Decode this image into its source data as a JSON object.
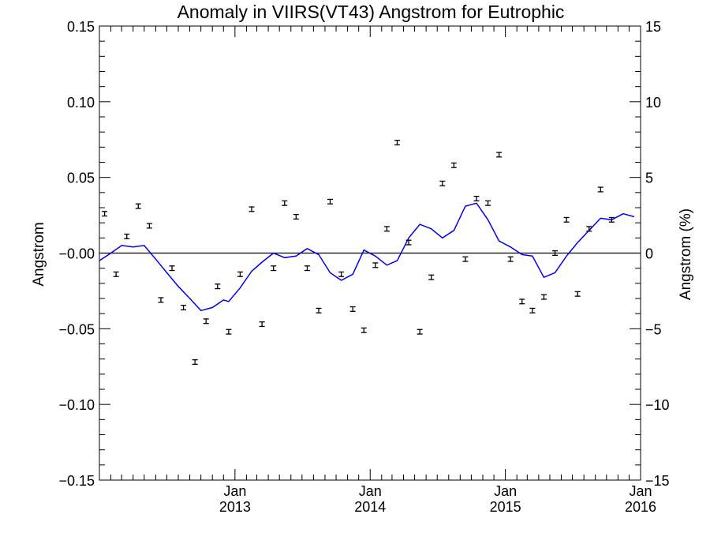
{
  "chart_data": {
    "type": "scatter",
    "title": "Anomaly in VIIRS(VT43) Angstrom for Eutrophic",
    "ylabel_left": "Angstrom",
    "ylabel_right": "Angstrom (%)",
    "ylim_left": [
      -0.15,
      0.15
    ],
    "ylim_right": [
      -15,
      15
    ],
    "yticks_left": [
      "0.15",
      "0.10",
      "0.05",
      "-0.00",
      "-0.05",
      "-0.10",
      "-0.15"
    ],
    "yticks_right": [
      "15",
      "10",
      "5",
      "0",
      "-5",
      "-10",
      "-15"
    ],
    "xlim": [
      "2012-01-01",
      "2016-01-01"
    ],
    "xticks": [
      {
        "date": "2013-01-01",
        "month": "Jan",
        "year": "2013"
      },
      {
        "date": "2014-01-01",
        "month": "Jan",
        "year": "2014"
      },
      {
        "date": "2015-01-01",
        "month": "Jan",
        "year": "2015"
      },
      {
        "date": "2016-01-01",
        "month": "Jan",
        "year": "2016"
      }
    ],
    "zero_line": true,
    "grid": false,
    "series": [
      {
        "kind": "points_with_error_bars",
        "color": "#000000",
        "error": 0.0015,
        "points": [
          {
            "x": "2012-01-15",
            "y": 0.026
          },
          {
            "x": "2012-02-15",
            "y": -0.014
          },
          {
            "x": "2012-03-15",
            "y": 0.011
          },
          {
            "x": "2012-04-15",
            "y": 0.031
          },
          {
            "x": "2012-05-15",
            "y": 0.018
          },
          {
            "x": "2012-06-15",
            "y": -0.031
          },
          {
            "x": "2012-07-15",
            "y": -0.01
          },
          {
            "x": "2012-08-15",
            "y": -0.036
          },
          {
            "x": "2012-09-15",
            "y": -0.072
          },
          {
            "x": "2012-10-15",
            "y": -0.045
          },
          {
            "x": "2012-11-15",
            "y": -0.022
          },
          {
            "x": "2012-12-15",
            "y": -0.052
          },
          {
            "x": "2013-01-15",
            "y": -0.014
          },
          {
            "x": "2013-02-15",
            "y": 0.029
          },
          {
            "x": "2013-03-15",
            "y": -0.047
          },
          {
            "x": "2013-04-15",
            "y": -0.01
          },
          {
            "x": "2013-05-15",
            "y": 0.033
          },
          {
            "x": "2013-06-15",
            "y": 0.024
          },
          {
            "x": "2013-07-15",
            "y": -0.01
          },
          {
            "x": "2013-08-15",
            "y": -0.038
          },
          {
            "x": "2013-09-15",
            "y": 0.034
          },
          {
            "x": "2013-10-15",
            "y": -0.014
          },
          {
            "x": "2013-11-15",
            "y": -0.037
          },
          {
            "x": "2013-12-15",
            "y": -0.051
          },
          {
            "x": "2014-01-15",
            "y": -0.008
          },
          {
            "x": "2014-02-15",
            "y": 0.016
          },
          {
            "x": "2014-03-15",
            "y": 0.073
          },
          {
            "x": "2014-04-15",
            "y": 0.007
          },
          {
            "x": "2014-05-15",
            "y": -0.052
          },
          {
            "x": "2014-06-15",
            "y": -0.016
          },
          {
            "x": "2014-07-15",
            "y": 0.046
          },
          {
            "x": "2014-08-15",
            "y": 0.058
          },
          {
            "x": "2014-09-15",
            "y": -0.004
          },
          {
            "x": "2014-10-15",
            "y": 0.036
          },
          {
            "x": "2014-11-15",
            "y": 0.033
          },
          {
            "x": "2014-12-15",
            "y": 0.065
          },
          {
            "x": "2015-01-15",
            "y": -0.004
          },
          {
            "x": "2015-02-15",
            "y": -0.032
          },
          {
            "x": "2015-03-15",
            "y": -0.038
          },
          {
            "x": "2015-04-15",
            "y": -0.029
          },
          {
            "x": "2015-05-15",
            "y": 0.0
          },
          {
            "x": "2015-06-15",
            "y": 0.022
          },
          {
            "x": "2015-07-15",
            "y": -0.027
          },
          {
            "x": "2015-08-15",
            "y": 0.016
          },
          {
            "x": "2015-09-15",
            "y": 0.042
          },
          {
            "x": "2015-10-15",
            "y": 0.022
          }
        ]
      },
      {
        "kind": "line",
        "color": "#0000ee",
        "points": [
          {
            "x": "2012-01-01",
            "y": -0.005
          },
          {
            "x": "2012-02-01",
            "y": 0.0
          },
          {
            "x": "2012-03-01",
            "y": 0.005
          },
          {
            "x": "2012-04-01",
            "y": 0.004
          },
          {
            "x": "2012-05-01",
            "y": 0.005
          },
          {
            "x": "2012-06-01",
            "y": -0.004
          },
          {
            "x": "2012-07-01",
            "y": -0.013
          },
          {
            "x": "2012-08-01",
            "y": -0.022
          },
          {
            "x": "2012-09-01",
            "y": -0.03
          },
          {
            "x": "2012-10-01",
            "y": -0.038
          },
          {
            "x": "2012-11-01",
            "y": -0.036
          },
          {
            "x": "2012-12-01",
            "y": -0.031
          },
          {
            "x": "2012-12-15",
            "y": -0.032
          },
          {
            "x": "2013-01-15",
            "y": -0.023
          },
          {
            "x": "2013-02-15",
            "y": -0.012
          },
          {
            "x": "2013-03-15",
            "y": -0.006
          },
          {
            "x": "2013-04-15",
            "y": 0.0
          },
          {
            "x": "2013-05-15",
            "y": -0.003
          },
          {
            "x": "2013-06-15",
            "y": -0.002
          },
          {
            "x": "2013-07-15",
            "y": 0.003
          },
          {
            "x": "2013-08-15",
            "y": -0.001
          },
          {
            "x": "2013-09-15",
            "y": -0.013
          },
          {
            "x": "2013-10-15",
            "y": -0.018
          },
          {
            "x": "2013-11-15",
            "y": -0.014
          },
          {
            "x": "2013-12-15",
            "y": 0.002
          },
          {
            "x": "2014-01-15",
            "y": -0.002
          },
          {
            "x": "2014-02-15",
            "y": -0.008
          },
          {
            "x": "2014-03-15",
            "y": -0.005
          },
          {
            "x": "2014-04-15",
            "y": 0.01
          },
          {
            "x": "2014-05-15",
            "y": 0.019
          },
          {
            "x": "2014-06-15",
            "y": 0.016
          },
          {
            "x": "2014-07-15",
            "y": 0.01
          },
          {
            "x": "2014-08-15",
            "y": 0.015
          },
          {
            "x": "2014-09-15",
            "y": 0.031
          },
          {
            "x": "2014-10-15",
            "y": 0.033
          },
          {
            "x": "2014-11-15",
            "y": 0.022
          },
          {
            "x": "2014-12-15",
            "y": 0.008
          },
          {
            "x": "2015-01-15",
            "y": 0.004
          },
          {
            "x": "2015-02-15",
            "y": -0.001
          },
          {
            "x": "2015-03-15",
            "y": -0.002
          },
          {
            "x": "2015-04-15",
            "y": -0.016
          },
          {
            "x": "2015-05-15",
            "y": -0.013
          },
          {
            "x": "2015-06-15",
            "y": -0.002
          },
          {
            "x": "2015-07-15",
            "y": 0.007
          },
          {
            "x": "2015-08-15",
            "y": 0.015
          },
          {
            "x": "2015-09-15",
            "y": 0.023
          },
          {
            "x": "2015-10-15",
            "y": 0.022
          },
          {
            "x": "2015-11-15",
            "y": 0.026
          },
          {
            "x": "2015-12-15",
            "y": 0.024
          }
        ]
      }
    ]
  }
}
